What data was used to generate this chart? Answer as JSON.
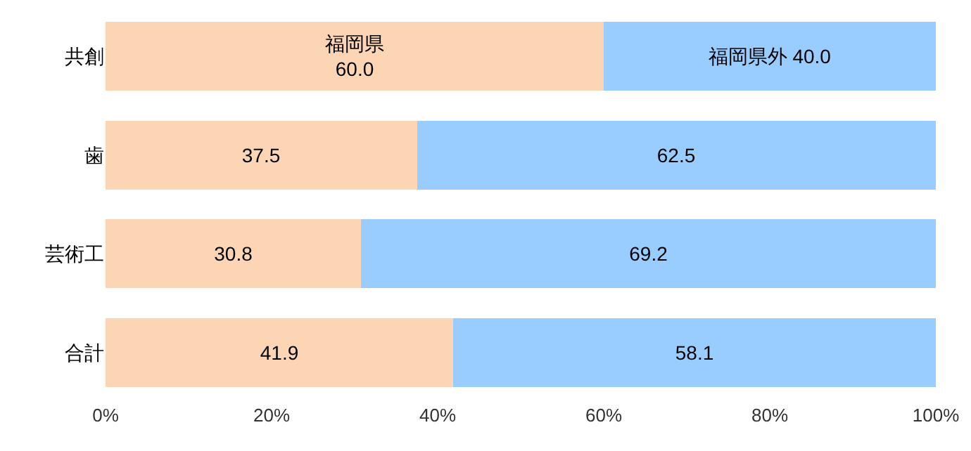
{
  "chart_data": {
    "type": "bar",
    "orientation": "horizontal",
    "stacked": true,
    "categories": [
      "共創",
      "歯",
      "芸術工",
      "合計"
    ],
    "series": [
      {
        "name": "福岡県",
        "color": "#fcd5b5",
        "values": [
          60.0,
          37.5,
          30.8,
          41.9
        ],
        "value_labels": [
          "60.0",
          "37.5",
          "30.8",
          "41.9"
        ]
      },
      {
        "name": "福岡県外",
        "color": "#99ccff",
        "values": [
          40.0,
          62.5,
          69.2,
          58.1
        ],
        "value_labels": [
          "40.0",
          "62.5",
          "69.2",
          "58.1"
        ]
      }
    ],
    "xlim": [
      0,
      100
    ],
    "xticks": [
      {
        "value": 0,
        "label": "0%"
      },
      {
        "value": 20,
        "label": "20%"
      },
      {
        "value": 40,
        "label": "40%"
      },
      {
        "value": 60,
        "label": "60%"
      },
      {
        "value": 80,
        "label": "80%"
      },
      {
        "value": 100,
        "label": "100%"
      }
    ],
    "legend": false,
    "grid": false
  }
}
